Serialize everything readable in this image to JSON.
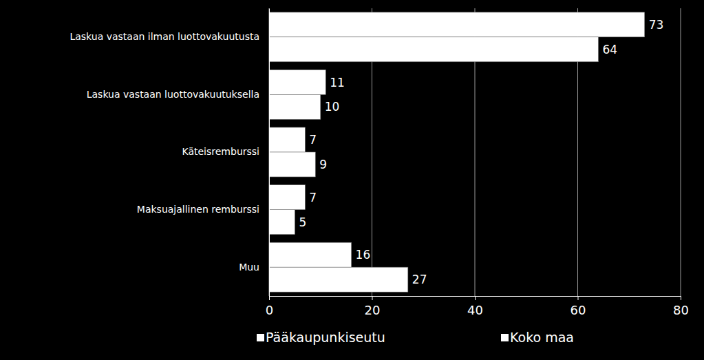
{
  "chart_data": {
    "type": "bar",
    "orientation": "horizontal",
    "categories": [
      "Laskua vastaan ilman luottovakuutusta",
      "Laskua vastaan luottovakuutuksella",
      "Käteisremburssi",
      "Maksuajallinen remburssi",
      "Muu"
    ],
    "series": [
      {
        "name": "Pääkaupunkiseutu",
        "color": "#ffffff",
        "values": [
          73,
          11,
          7,
          7,
          16
        ]
      },
      {
        "name": "Koko maa",
        "color": "#ffffff",
        "values": [
          64,
          10,
          9,
          5,
          27
        ]
      }
    ],
    "xlim": [
      0,
      80
    ],
    "xticks": [
      0,
      20,
      40,
      60,
      80
    ],
    "grid": true,
    "data_labels": true,
    "legend": "bottom"
  }
}
